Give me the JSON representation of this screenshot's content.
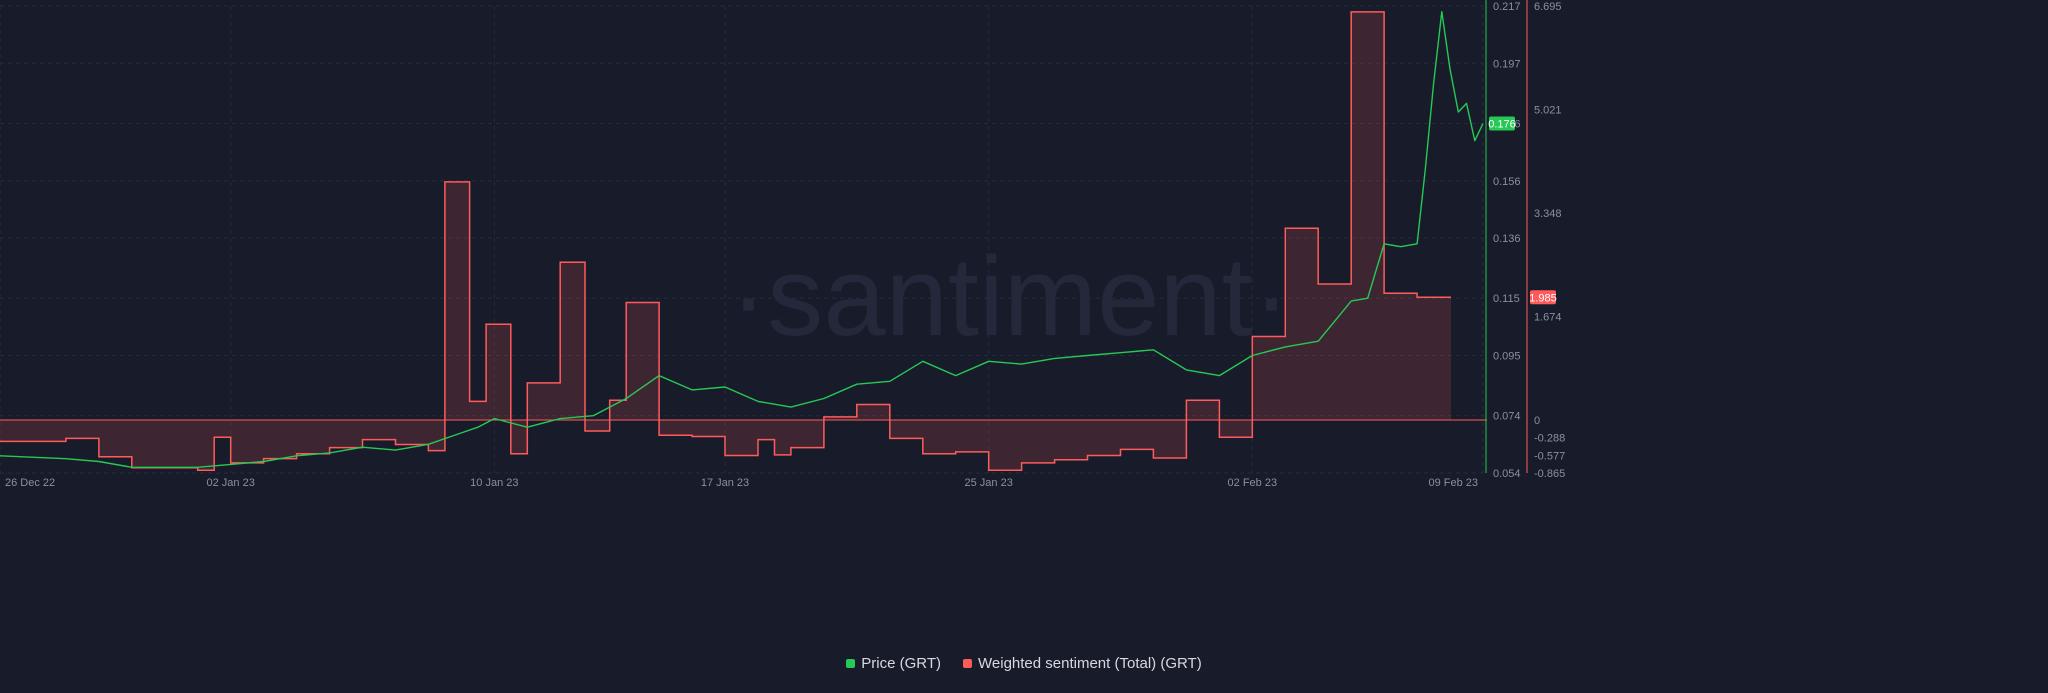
{
  "watermark": "·santiment·",
  "legend": [
    {
      "name": "Price (GRT)",
      "color": "#26c953"
    },
    {
      "name": "Weighted sentiment (Total) (GRT)",
      "color": "#ff5b5b"
    }
  ],
  "chart_data": {
    "type": "line",
    "x_ticks": [
      "26 Dec 22",
      "02 Jan 23",
      "10 Jan 23",
      "17 Jan 23",
      "25 Jan 23",
      "02 Feb 23",
      "09 Feb 23"
    ],
    "x_range": [
      "2022-12-26",
      "2023-02-09"
    ],
    "price_axis": {
      "ticks": [
        "0.217",
        "0.197",
        "0.176",
        "0.156",
        "0.136",
        "0.115",
        "0.095",
        "0.074",
        "0.054"
      ],
      "range": [
        0.054,
        0.217
      ]
    },
    "sentiment_axis": {
      "ticks": [
        "6.695",
        "5.021",
        "3.348",
        "1.674",
        "0",
        "-0.288",
        "-0.577",
        "-0.865"
      ],
      "range": [
        -0.865,
        6.695
      ]
    },
    "current_price_label": "0.176",
    "current_sentiment_label": "1.985",
    "series": [
      {
        "name": "Price (GRT)",
        "color": "#26c953",
        "axis": "price",
        "points": [
          [
            "2022-12-26",
            0.06
          ],
          [
            "2022-12-28",
            0.059
          ],
          [
            "2022-12-29",
            0.058
          ],
          [
            "2022-12-30",
            0.056
          ],
          [
            "2023-01-01",
            0.056
          ],
          [
            "2023-01-02",
            0.057
          ],
          [
            "2023-01-03",
            0.058
          ],
          [
            "2023-01-04",
            0.06
          ],
          [
            "2023-01-05",
            0.061
          ],
          [
            "2023-01-06",
            0.063
          ],
          [
            "2023-01-07",
            0.062
          ],
          [
            "2023-01-08",
            0.064
          ],
          [
            "2023-01-09",
            0.068
          ],
          [
            "2023-01-09T12",
            0.07
          ],
          [
            "2023-01-10",
            0.073
          ],
          [
            "2023-01-11",
            0.07
          ],
          [
            "2023-01-12",
            0.073
          ],
          [
            "2023-01-13",
            0.074
          ],
          [
            "2023-01-14",
            0.08
          ],
          [
            "2023-01-15",
            0.088
          ],
          [
            "2023-01-16",
            0.083
          ],
          [
            "2023-01-17",
            0.084
          ],
          [
            "2023-01-18",
            0.079
          ],
          [
            "2023-01-19",
            0.077
          ],
          [
            "2023-01-20",
            0.08
          ],
          [
            "2023-01-21",
            0.085
          ],
          [
            "2023-01-22",
            0.086
          ],
          [
            "2023-01-23",
            0.093
          ],
          [
            "2023-01-24",
            0.088
          ],
          [
            "2023-01-25",
            0.093
          ],
          [
            "2023-01-26",
            0.092
          ],
          [
            "2023-01-27",
            0.094
          ],
          [
            "2023-01-28",
            0.095
          ],
          [
            "2023-01-29",
            0.096
          ],
          [
            "2023-01-30",
            0.097
          ],
          [
            "2023-01-31",
            0.09
          ],
          [
            "2023-02-01",
            0.088
          ],
          [
            "2023-02-02",
            0.095
          ],
          [
            "2023-02-03",
            0.098
          ],
          [
            "2023-02-04",
            0.1
          ],
          [
            "2023-02-04T12",
            0.107
          ],
          [
            "2023-02-05",
            0.114
          ],
          [
            "2023-02-05T12",
            0.115
          ],
          [
            "2023-02-06",
            0.134
          ],
          [
            "2023-02-06T12",
            0.133
          ],
          [
            "2023-02-07",
            0.134
          ],
          [
            "2023-02-07T06",
            0.16
          ],
          [
            "2023-02-07T12",
            0.19
          ],
          [
            "2023-02-07T18",
            0.215
          ],
          [
            "2023-02-08",
            0.195
          ],
          [
            "2023-02-08T06",
            0.18
          ],
          [
            "2023-02-08T12",
            0.183
          ],
          [
            "2023-02-08T18",
            0.17
          ],
          [
            "2023-02-09",
            0.176
          ]
        ]
      },
      {
        "name": "Weighted sentiment (Total) (GRT)",
        "color": "#ff5b5b",
        "axis": "sentiment",
        "steps": [
          [
            "2022-12-26",
            -0.35
          ],
          [
            "2022-12-28",
            -0.3
          ],
          [
            "2022-12-29",
            -0.6
          ],
          [
            "2022-12-30",
            -0.78
          ],
          [
            "2023-01-01",
            -0.82
          ],
          [
            "2023-01-01T12",
            -0.28
          ],
          [
            "2023-01-02",
            -0.7
          ],
          [
            "2023-01-03",
            -0.63
          ],
          [
            "2023-01-04",
            -0.55
          ],
          [
            "2023-01-05",
            -0.45
          ],
          [
            "2023-01-06",
            -0.32
          ],
          [
            "2023-01-07",
            -0.4
          ],
          [
            "2023-01-08",
            -0.5
          ],
          [
            "2023-01-08T12",
            3.85
          ],
          [
            "2023-01-09T06",
            0.3
          ],
          [
            "2023-01-09T18",
            1.55
          ],
          [
            "2023-01-10T12",
            -0.55
          ],
          [
            "2023-01-11",
            0.6
          ],
          [
            "2023-01-12",
            2.55
          ],
          [
            "2023-01-12T18",
            -0.18
          ],
          [
            "2023-01-13T12",
            0.32
          ],
          [
            "2023-01-14",
            1.9
          ],
          [
            "2023-01-15",
            -0.25
          ],
          [
            "2023-01-16",
            -0.27
          ],
          [
            "2023-01-17",
            -0.58
          ],
          [
            "2023-01-18",
            -0.32
          ],
          [
            "2023-01-18T12",
            -0.57
          ],
          [
            "2023-01-19",
            -0.45
          ],
          [
            "2023-01-20",
            0.05
          ],
          [
            "2023-01-21",
            0.25
          ],
          [
            "2023-01-22",
            -0.3
          ],
          [
            "2023-01-23",
            -0.55
          ],
          [
            "2023-01-24",
            -0.52
          ],
          [
            "2023-01-25",
            -0.82
          ],
          [
            "2023-01-26",
            -0.7
          ],
          [
            "2023-01-27",
            -0.65
          ],
          [
            "2023-01-28",
            -0.58
          ],
          [
            "2023-01-29",
            -0.48
          ],
          [
            "2023-01-30",
            -0.62
          ],
          [
            "2023-01-31",
            0.32
          ],
          [
            "2023-02-01",
            -0.28
          ],
          [
            "2023-02-02",
            1.35
          ],
          [
            "2023-02-03",
            3.1
          ],
          [
            "2023-02-04",
            2.2
          ],
          [
            "2023-02-05",
            6.6
          ],
          [
            "2023-02-06",
            2.05
          ],
          [
            "2023-02-07",
            1.985
          ]
        ]
      }
    ]
  }
}
